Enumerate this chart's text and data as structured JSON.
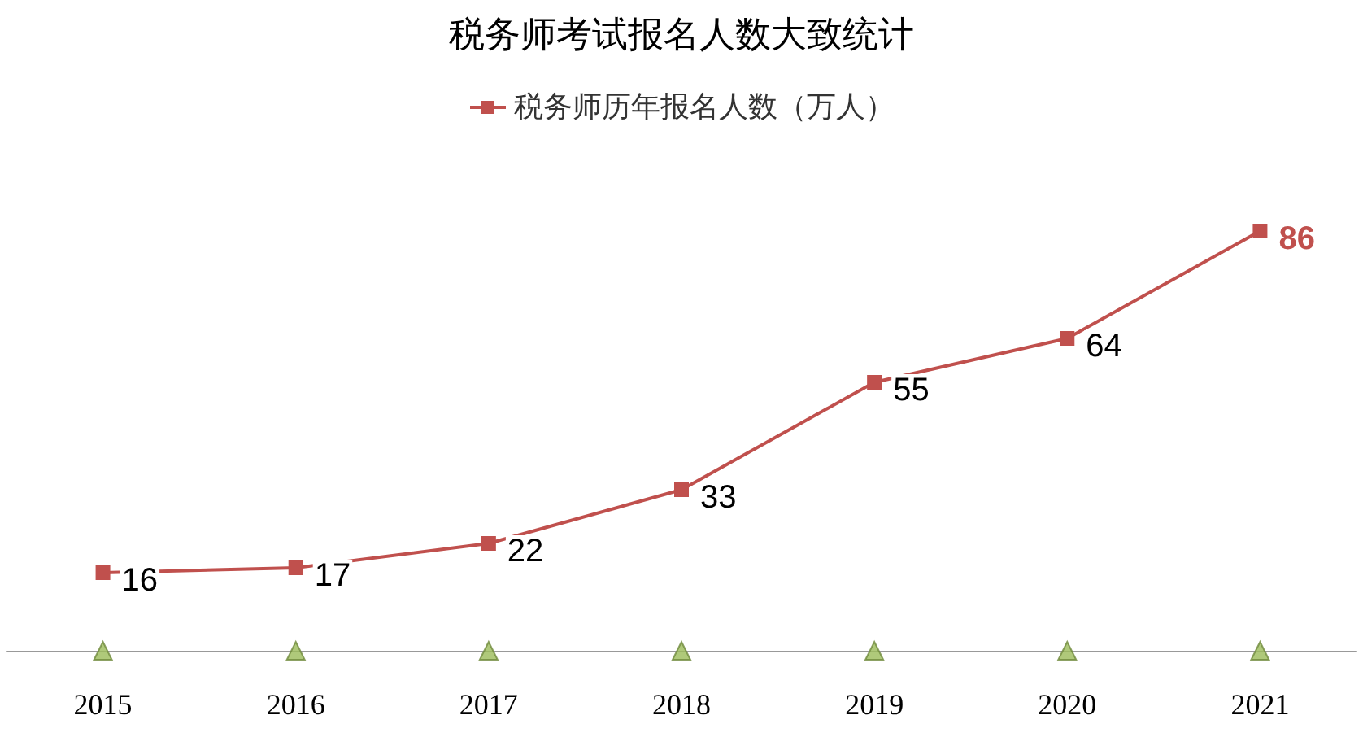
{
  "chart_data": {
    "type": "line",
    "title": "税务师考试报名人数大致统计",
    "categories": [
      "2015",
      "2016",
      "2017",
      "2018",
      "2019",
      "2020",
      "2021"
    ],
    "series": [
      {
        "name": "税务师历年报名人数（万人）",
        "color": "#c0504d",
        "values": [
          16,
          17,
          22,
          33,
          55,
          64,
          86
        ],
        "marker": "square"
      },
      {
        "type": "scatter",
        "color": "#9bbb59",
        "values": [
          0,
          0,
          0,
          0,
          0,
          0,
          0
        ],
        "marker": "triangle",
        "data_labels": false
      }
    ],
    "data_labels": true,
    "tick_labels": "x",
    "grid": false,
    "legend": "top"
  }
}
